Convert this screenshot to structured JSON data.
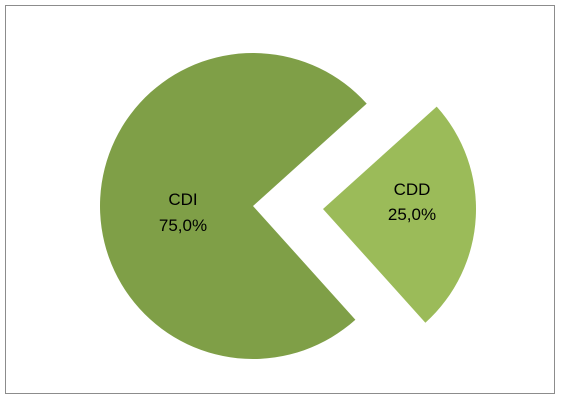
{
  "chart_data": {
    "type": "pie",
    "exploded": true,
    "title": "",
    "legend": "none",
    "slices": [
      {
        "label": "CDI",
        "value": 75.0,
        "display": "75,0%",
        "color": "#7f9f47"
      },
      {
        "label": "CDD",
        "value": 25.0,
        "display": "25,0%",
        "color": "#9bbb59"
      }
    ]
  }
}
